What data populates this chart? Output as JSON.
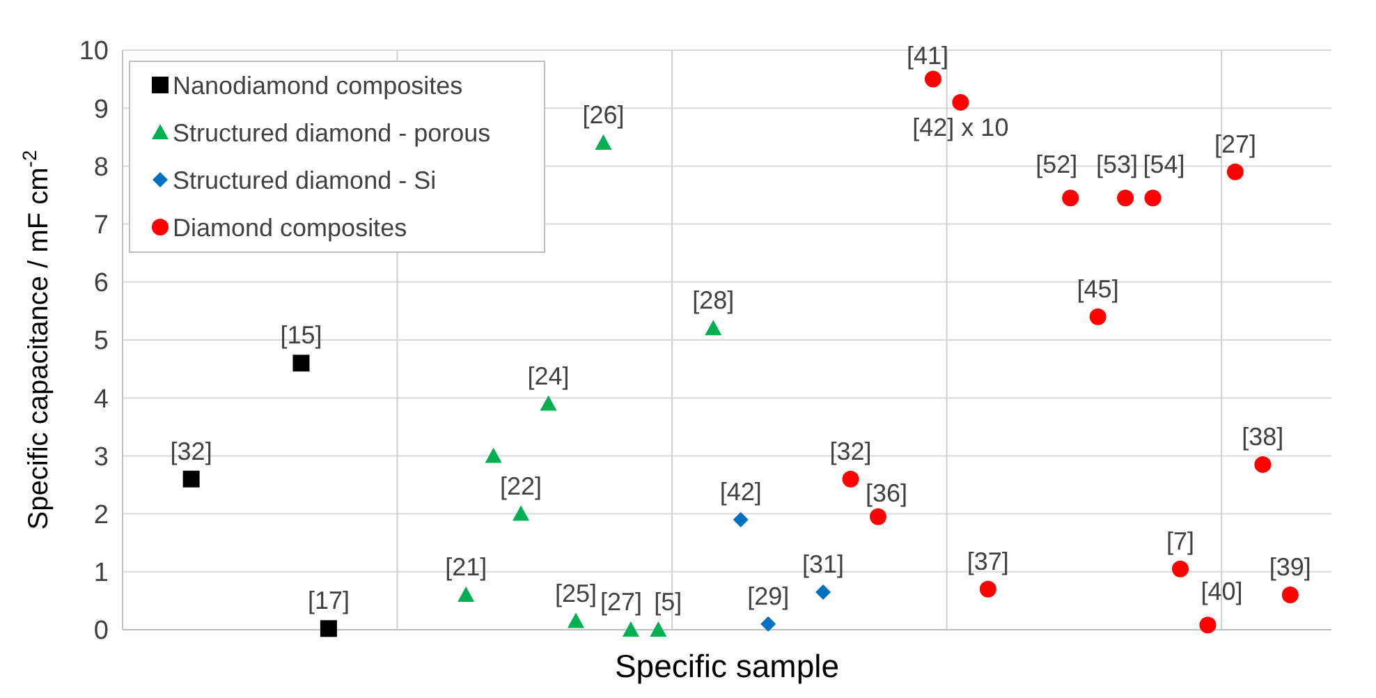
{
  "chart_data": {
    "type": "scatter",
    "xlabel": "Specific sample",
    "ylabel": "Specific capacitance / mF cm$^{-2}$",
    "categories": [
      null,
      null,
      null,
      null,
      null,
      null,
      null,
      null,
      null,
      null,
      null,
      null,
      null,
      null,
      null,
      null,
      null,
      null,
      null,
      null,
      null,
      null,
      null,
      null,
      null,
      null,
      null,
      null,
      null,
      null,
      null,
      null,
      null,
      null,
      null,
      null,
      null,
      null,
      null,
      null,
      null,
      null,
      null,
      null
    ],
    "ylim": [
      0,
      10
    ],
    "yticks": [
      0,
      1,
      2,
      3,
      4,
      5,
      6,
      7,
      8,
      9,
      10
    ],
    "grid": true,
    "legend": "top left",
    "tick_labels": "y",
    "series": [
      {
        "name": "Nanodiamond composites",
        "color": "#000000",
        "marker": "square",
        "values": [
          null,
          null,
          2.6,
          null,
          null,
          null,
          4.6,
          0.02,
          null,
          null,
          null,
          null,
          null,
          null,
          null,
          null,
          null,
          null,
          null,
          null,
          null,
          null,
          null,
          null,
          null,
          null,
          null,
          null,
          null,
          null,
          null,
          null,
          null,
          null,
          null,
          null,
          null,
          null,
          null,
          null,
          null,
          null,
          null,
          null
        ]
      },
      {
        "name": "Structured diamond - porous",
        "color": "#00b050",
        "marker": "triangle",
        "values": [
          null,
          null,
          null,
          null,
          null,
          null,
          null,
          null,
          null,
          null,
          null,
          null,
          0.6,
          3.0,
          2.0,
          3.9,
          0.15,
          8.4,
          0,
          0,
          null,
          5.2,
          null,
          null,
          null,
          null,
          null,
          null,
          null,
          null,
          null,
          null,
          null,
          null,
          null,
          null,
          null,
          null,
          null,
          null,
          null,
          null,
          null,
          null
        ]
      },
      {
        "name": "Structured diamond - Si",
        "color": "#0070c0",
        "marker": "diamond",
        "values": [
          null,
          null,
          null,
          null,
          null,
          null,
          null,
          null,
          null,
          null,
          null,
          null,
          null,
          null,
          null,
          null,
          null,
          null,
          null,
          null,
          null,
          null,
          1.9,
          0.1,
          null,
          0.65,
          null,
          null,
          null,
          null,
          null,
          null,
          null,
          null,
          null,
          null,
          null,
          null,
          null,
          null,
          null,
          null,
          null,
          null
        ]
      },
      {
        "name": "Diamond composites",
        "color": "#ff0000",
        "marker": "circle",
        "values": [
          null,
          null,
          null,
          null,
          null,
          null,
          null,
          null,
          null,
          null,
          null,
          null,
          null,
          null,
          null,
          null,
          null,
          null,
          null,
          null,
          null,
          null,
          null,
          null,
          null,
          null,
          2.6,
          1.95,
          null,
          9.5,
          9.1,
          0.7,
          null,
          null,
          7.45,
          5.4,
          7.45,
          7.45,
          1.05,
          0.08,
          7.9,
          2.85,
          0.6,
          null
        ]
      }
    ],
    "annotations": [
      {
        "text": "[32]",
        "y": 2.6
      },
      {
        "text": "[15]",
        "y": 4.6
      },
      {
        "text": "[17]",
        "y": 0.02
      },
      {
        "text": "[21]",
        "y": 0.6
      },
      {
        "text": "[22]",
        "y": 2.0
      },
      {
        "text": "[24]",
        "y": 3.9
      },
      {
        "text": "[25]",
        "y": 0.15
      },
      {
        "text": "[26]",
        "y": 8.4
      },
      {
        "text": "[27]",
        "y": 0
      },
      {
        "text": "[5]",
        "y": 0
      },
      {
        "text": "[28]",
        "y": 5.2
      },
      {
        "text": "[42]",
        "y": 1.9
      },
      {
        "text": "[29]",
        "y": 0.1
      },
      {
        "text": "[31]",
        "y": 0.65
      },
      {
        "text": "[32]",
        "y": 2.6
      },
      {
        "text": "[36]",
        "y": 1.95
      },
      {
        "text": "[41]",
        "y": 9.5
      },
      {
        "text": "[42] x 10",
        "y": 9.1
      },
      {
        "text": "[37]",
        "y": 0.7
      },
      {
        "text": "[52]",
        "y": 7.45
      },
      {
        "text": "[45]",
        "y": 5.4
      },
      {
        "text": "[53]",
        "y": 7.45
      },
      {
        "text": "[54]",
        "y": 7.45
      },
      {
        "text": "[7]",
        "y": 1.05
      },
      {
        "text": "[40]",
        "y": 0.08
      },
      {
        "text": "[27]",
        "y": 7.9
      },
      {
        "text": "[38]",
        "y": 2.85
      },
      {
        "text": "[39]",
        "y": 0.6
      }
    ]
  }
}
